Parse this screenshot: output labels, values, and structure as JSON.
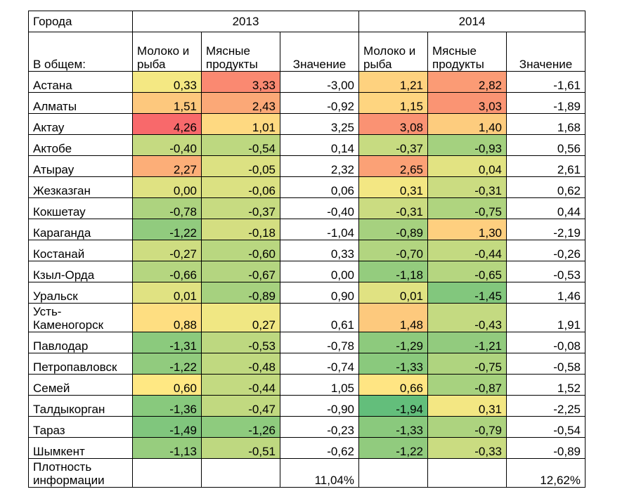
{
  "header": {
    "corner_top": "Города",
    "corner_bottom": "В общем:",
    "years": [
      "2013",
      "2014"
    ],
    "columns": [
      "Молоко и рыба",
      "Мясные продукты",
      "Значение"
    ]
  },
  "rows": [
    {
      "city": "Астана",
      "v": [
        "0,33",
        "3,33",
        "-3,00",
        "1,21",
        "2,82",
        "-1,61"
      ]
    },
    {
      "city": "Алматы",
      "v": [
        "1,51",
        "2,43",
        "-0,92",
        "1,15",
        "3,03",
        "-1,89"
      ]
    },
    {
      "city": "Актау",
      "v": [
        "4,26",
        "1,01",
        "3,25",
        "3,08",
        "1,40",
        "1,68"
      ]
    },
    {
      "city": "Актобе",
      "v": [
        "-0,40",
        "-0,54",
        "0,14",
        "-0,37",
        "-0,93",
        "0,56"
      ]
    },
    {
      "city": "Атырау",
      "v": [
        "2,27",
        "-0,05",
        "2,32",
        "2,65",
        "0,04",
        "2,61"
      ]
    },
    {
      "city": "Жезказган",
      "v": [
        "0,00",
        "-0,06",
        "0,06",
        "0,31",
        "-0,31",
        "0,62"
      ]
    },
    {
      "city": "Кокшетау",
      "v": [
        "-0,78",
        "-0,37",
        "-0,40",
        "-0,31",
        "-0,75",
        "0,44"
      ]
    },
    {
      "city": "Караганда",
      "v": [
        "-1,22",
        "-0,18",
        "-1,04",
        "-0,89",
        "1,30",
        "-2,19"
      ]
    },
    {
      "city": "Костанай",
      "v": [
        "-0,27",
        "-0,60",
        "0,33",
        "-0,70",
        "-0,44",
        "-0,26"
      ]
    },
    {
      "city": "Кзыл-Орда",
      "v": [
        "-0,66",
        "-0,67",
        "0,00",
        "-1,18",
        "-0,65",
        "-0,53"
      ]
    },
    {
      "city": "Уральск",
      "v": [
        "0,01",
        "-0,89",
        "0,90",
        "0,01",
        "-1,45",
        "1,46"
      ]
    },
    {
      "city": "Усть-Каменогорск",
      "v": [
        "0,88",
        "0,27",
        "0,61",
        "1,48",
        "-0,43",
        "1,91"
      ]
    },
    {
      "city": "Павлодар",
      "v": [
        "-1,31",
        "-0,53",
        "-0,78",
        "-1,29",
        "-1,21",
        "-0,08"
      ]
    },
    {
      "city": "Петропавловск",
      "v": [
        "-1,22",
        "-0,48",
        "-0,74",
        "-1,33",
        "-0,75",
        "-0,58"
      ]
    },
    {
      "city": "Семей",
      "v": [
        "0,60",
        "-0,44",
        "1,05",
        "0,66",
        "-0,87",
        "1,52"
      ]
    },
    {
      "city": "Талдыкорган",
      "v": [
        "-1,36",
        "-0,47",
        "-0,90",
        "-1,94",
        "0,31",
        "-2,25"
      ]
    },
    {
      "city": "Тараз",
      "v": [
        "-1,49",
        "-1,26",
        "-0,23",
        "-1,33",
        "-0,79",
        "-0,54"
      ]
    },
    {
      "city": "Шымкент",
      "v": [
        "-1,13",
        "-0,51",
        "-0,62",
        "-1,22",
        "-0,33",
        "-0,89"
      ]
    }
  ],
  "footer": {
    "label": "Плотность информации",
    "v2013": "11,04%",
    "v2014": "12,62%"
  },
  "scale_colors": {
    "low": "#63be7b",
    "mid": "#ffeb84",
    "high": "#f8696b"
  },
  "chart_data": {
    "type": "heatmap",
    "title": "",
    "row_labels": [
      "Астана",
      "Алматы",
      "Актау",
      "Актобе",
      "Атырау",
      "Жезказган",
      "Кокшетау",
      "Караганда",
      "Костанай",
      "Кзыл-Орда",
      "Уральск",
      "Усть-Каменогорск",
      "Павлодар",
      "Петропавловск",
      "Семей",
      "Талдыкорган",
      "Тараз",
      "Шымкент"
    ],
    "column_groups": [
      {
        "year": "2013",
        "columns": [
          "Молоко и рыба",
          "Мясные продукты",
          "Значение"
        ]
      },
      {
        "year": "2014",
        "columns": [
          "Молоко и рыба",
          "Мясные продукты",
          "Значение"
        ]
      }
    ],
    "values_2013": [
      [
        0.33,
        3.33,
        -3.0
      ],
      [
        1.51,
        2.43,
        -0.92
      ],
      [
        4.26,
        1.01,
        3.25
      ],
      [
        -0.4,
        -0.54,
        0.14
      ],
      [
        2.27,
        -0.05,
        2.32
      ],
      [
        0.0,
        -0.06,
        0.06
      ],
      [
        -0.78,
        -0.37,
        -0.4
      ],
      [
        -1.22,
        -0.18,
        -1.04
      ],
      [
        -0.27,
        -0.6,
        0.33
      ],
      [
        -0.66,
        -0.67,
        0.0
      ],
      [
        0.01,
        -0.89,
        0.9
      ],
      [
        0.88,
        0.27,
        0.61
      ],
      [
        -1.31,
        -0.53,
        -0.78
      ],
      [
        -1.22,
        -0.48,
        -0.74
      ],
      [
        0.6,
        -0.44,
        1.05
      ],
      [
        -1.36,
        -0.47,
        -0.9
      ],
      [
        -1.49,
        -1.26,
        -0.23
      ],
      [
        -1.13,
        -0.51,
        -0.62
      ]
    ],
    "values_2014": [
      [
        1.21,
        2.82,
        -1.61
      ],
      [
        1.15,
        3.03,
        -1.89
      ],
      [
        3.08,
        1.4,
        1.68
      ],
      [
        -0.37,
        -0.93,
        0.56
      ],
      [
        2.65,
        0.04,
        2.61
      ],
      [
        0.31,
        -0.31,
        0.62
      ],
      [
        -0.31,
        -0.75,
        0.44
      ],
      [
        -0.89,
        1.3,
        -2.19
      ],
      [
        -0.7,
        -0.44,
        -0.26
      ],
      [
        -1.18,
        -0.65,
        -0.53
      ],
      [
        0.01,
        -1.45,
        1.46
      ],
      [
        1.48,
        -0.43,
        1.91
      ],
      [
        -1.29,
        -1.21,
        -0.08
      ],
      [
        -1.33,
        -0.75,
        -0.58
      ],
      [
        0.66,
        -0.87,
        1.52
      ],
      [
        -1.94,
        0.31,
        -2.25
      ],
      [
        -1.33,
        -0.79,
        -0.54
      ],
      [
        -1.22,
        -0.33,
        -0.89
      ]
    ],
    "color_range": [
      -1.94,
      4.26
    ],
    "colored_columns": [
      "Молоко и рыба",
      "Мясные продукты"
    ]
  }
}
